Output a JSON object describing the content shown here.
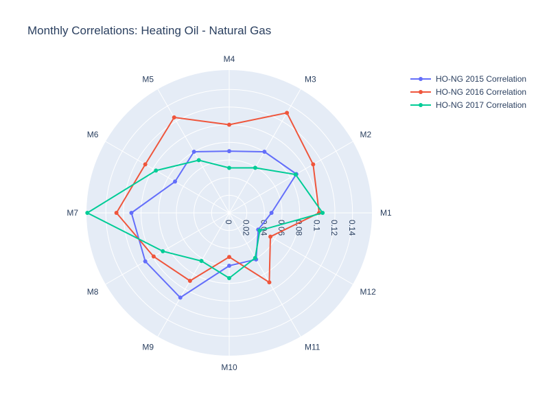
{
  "chart_data": {
    "type": "polar-line",
    "title": "Monthly Correlations: Heating Oil - Natural Gas",
    "categories": [
      "M1",
      "M2",
      "M3",
      "M4",
      "M5",
      "M6",
      "M7",
      "M8",
      "M9",
      "M10",
      "M11",
      "M12"
    ],
    "radial_ticks": [
      "0",
      "0.02",
      "0.04",
      "0.06",
      "0.08",
      "0.1",
      "0.12",
      "0.14"
    ],
    "radial_range": [
      0,
      0.162
    ],
    "background": "#e5ecf6",
    "gridline_color": "#ffffff",
    "legend_position": "top-right",
    "series": [
      {
        "name": "HO-NG 2015 Correlation",
        "color": "#636efa",
        "values": [
          0.048,
          0.088,
          0.08,
          0.07,
          0.08,
          0.071,
          0.111,
          0.11,
          0.111,
          0.06,
          0.061,
          0.038
        ]
      },
      {
        "name": "HO-NG 2016 Correlation",
        "color": "#ef553b",
        "values": [
          0.102,
          0.11,
          0.131,
          0.1,
          0.125,
          0.11,
          0.128,
          0.099,
          0.089,
          0.05,
          0.091,
          0.054
        ]
      },
      {
        "name": "HO-NG 2017 Correlation",
        "color": "#00cc96",
        "values": [
          0.106,
          0.087,
          0.059,
          0.051,
          0.069,
          0.096,
          0.161,
          0.087,
          0.063,
          0.074,
          0.059,
          0.04
        ]
      }
    ]
  }
}
